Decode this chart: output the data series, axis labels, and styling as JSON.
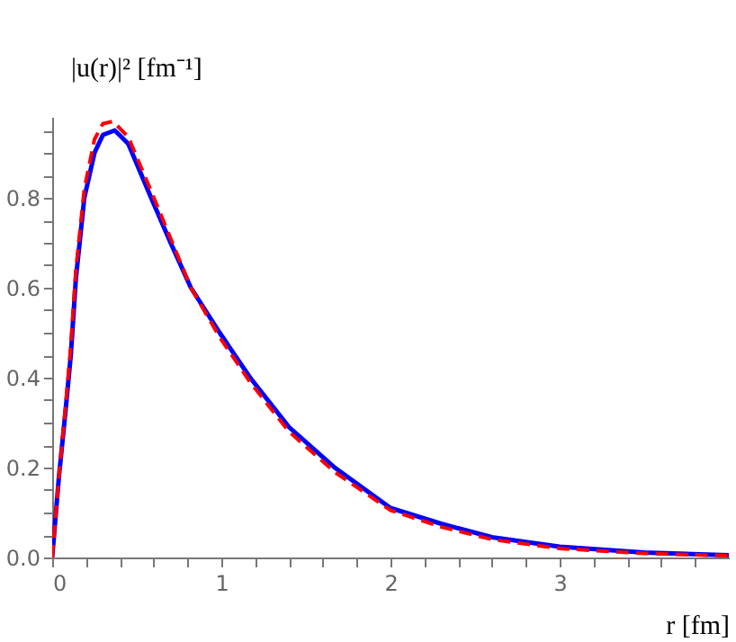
{
  "chart_data": {
    "type": "line",
    "xlabel": "r [fm]",
    "ylabel": "|u(r)|² [fm⁻¹]",
    "xlim": [
      0,
      4.0
    ],
    "ylim": [
      0,
      0.98
    ],
    "xticks": [
      0,
      {
        "value": 0.2,
        "label": null
      },
      {
        "value": 0.4,
        "label": null
      },
      {
        "value": 0.6,
        "label": null
      },
      {
        "value": 0.8,
        "label": null
      },
      1,
      {
        "value": 1.2,
        "label": null
      },
      {
        "value": 1.4,
        "label": null
      },
      {
        "value": 1.6,
        "label": null
      },
      {
        "value": 1.8,
        "label": null
      },
      2,
      {
        "value": 2.2,
        "label": null
      },
      {
        "value": 2.4,
        "label": null
      },
      {
        "value": 2.6,
        "label": null
      },
      {
        "value": 2.8,
        "label": null
      },
      3,
      {
        "value": 3.2,
        "label": null
      },
      {
        "value": 3.4,
        "label": null
      },
      {
        "value": 3.6,
        "label": null
      },
      {
        "value": 3.8,
        "label": null
      }
    ],
    "yticks": [
      {
        "value": 0,
        "label": "0.0"
      },
      {
        "value": 0.05,
        "label": null
      },
      {
        "value": 0.1,
        "label": null
      },
      {
        "value": 0.15,
        "label": null
      },
      0.2,
      {
        "value": 0.25,
        "label": null
      },
      {
        "value": 0.3,
        "label": null
      },
      {
        "value": 0.35,
        "label": null
      },
      0.4,
      {
        "value": 0.45,
        "label": null
      },
      {
        "value": 0.5,
        "label": null
      },
      {
        "value": 0.55,
        "label": null
      },
      0.6,
      {
        "value": 0.65,
        "label": null
      },
      {
        "value": 0.7,
        "label": null
      },
      {
        "value": 0.75,
        "label": null
      },
      0.8,
      {
        "value": 0.85,
        "label": null
      },
      {
        "value": 0.9,
        "label": null
      },
      {
        "value": 0.95,
        "label": null
      }
    ],
    "grid": false,
    "marker": "none",
    "series": [
      {
        "color": "#0000ff",
        "line_style": "solid",
        "x": [
          0,
          0.04,
          0.08,
          0.11,
          0.14,
          0.19,
          0.25,
          0.3,
          0.37,
          0.45,
          0.585,
          0.7,
          0.82,
          0.99,
          1.17,
          1.4,
          1.67,
          2.0,
          2.3,
          2.6,
          3.0,
          3.5,
          4.0
        ],
        "values": [
          0,
          0.18,
          0.33,
          0.45,
          0.62,
          0.8,
          0.9,
          0.94,
          0.95,
          0.92,
          0.8,
          0.7,
          0.6,
          0.5,
          0.4,
          0.29,
          0.2,
          0.11,
          0.075,
          0.045,
          0.024,
          0.011,
          0.005
        ]
      },
      {
        "color": "#ff0000",
        "line_style": "dashed",
        "x": [
          0,
          0.04,
          0.08,
          0.11,
          0.14,
          0.19,
          0.25,
          0.3,
          0.36,
          0.45,
          0.585,
          0.7,
          0.82,
          0.99,
          1.17,
          1.4,
          1.67,
          2.0,
          2.3,
          2.6,
          3.0,
          3.5,
          4.0
        ],
        "values": [
          0,
          0.18,
          0.34,
          0.47,
          0.64,
          0.82,
          0.93,
          0.965,
          0.97,
          0.935,
          0.815,
          0.71,
          0.6,
          0.49,
          0.39,
          0.28,
          0.19,
          0.105,
          0.068,
          0.04,
          0.02,
          0.009,
          0.004
        ]
      }
    ]
  }
}
